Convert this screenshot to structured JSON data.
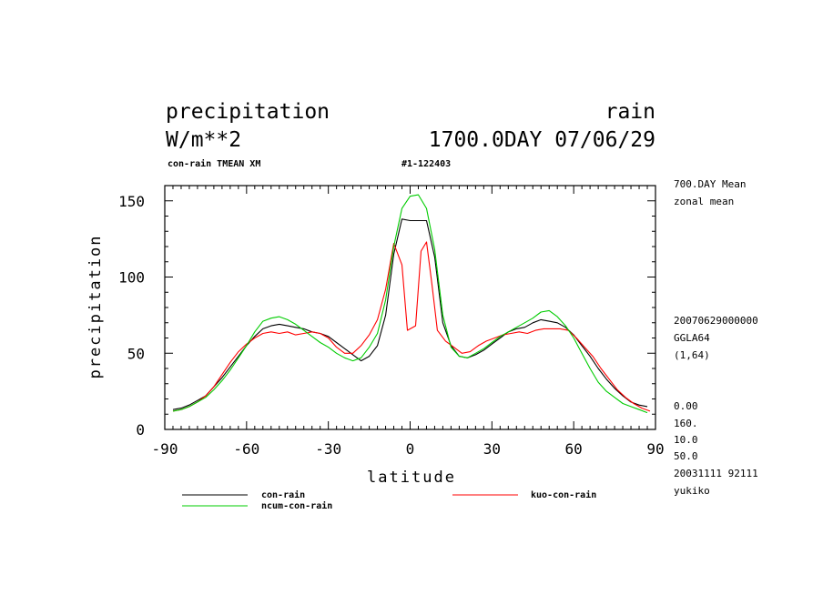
{
  "header": {
    "variable": "precipitation",
    "name": "rain",
    "units": "W/m**2",
    "time": "1700.0DAY 07/06/29",
    "subtitle_left": "con-rain TMEAN XM",
    "subtitle_id": "#1-122403"
  },
  "side_info": {
    "top": [
      "700.DAY Mean",
      "zonal mean"
    ],
    "middle": [
      "20070629000000",
      "GGLA64",
      "(1,64)"
    ],
    "bottom": [
      "0.00",
      "160.",
      "10.0",
      "50.0",
      "20031111  92111",
      "yukiko"
    ]
  },
  "chart_data": {
    "type": "line",
    "xlabel": "latitude",
    "ylabel": "precipitation",
    "xlim": [
      -90,
      90
    ],
    "ylim": [
      0,
      160
    ],
    "xticks": [
      -90,
      -60,
      -30,
      0,
      30,
      60,
      90
    ],
    "yticks": [
      0,
      50,
      100,
      150
    ],
    "x_tick_labels": [
      "-90",
      "-60",
      "-30",
      "0",
      "30",
      "60",
      "90"
    ],
    "y_tick_labels": [
      "0",
      "50",
      "100",
      "150"
    ],
    "grid": false,
    "legend_position": "bottom",
    "series": [
      {
        "name": "con-rain",
        "color": "#000000",
        "x": [
          -87,
          -84,
          -81,
          -78,
          -75,
          -72,
          -69,
          -66,
          -63,
          -60,
          -57,
          -54,
          -51,
          -48,
          -45,
          -42,
          -39,
          -36,
          -33,
          -30,
          -27,
          -24,
          -21,
          -18,
          -15,
          -12,
          -9,
          -6,
          -3,
          0,
          3,
          6,
          9,
          12,
          15,
          18,
          21,
          24,
          27,
          30,
          33,
          36,
          39,
          42,
          45,
          48,
          51,
          54,
          57,
          60,
          63,
          66,
          69,
          72,
          75,
          78,
          81,
          84,
          87
        ],
        "y": [
          13,
          14,
          16,
          19,
          22,
          28,
          34,
          41,
          48,
          55,
          61,
          66,
          68,
          69,
          68,
          67,
          66,
          64,
          63,
          61,
          57,
          53,
          49,
          45,
          48,
          55,
          75,
          115,
          138,
          137,
          137,
          137,
          113,
          70,
          55,
          48,
          47,
          49,
          52,
          56,
          60,
          64,
          66,
          67,
          70,
          72,
          71,
          70,
          67,
          62,
          55,
          48,
          40,
          33,
          27,
          22,
          18,
          16,
          15
        ]
      },
      {
        "name": "kuo-con-rain",
        "color": "#ff0000",
        "x": [
          -87,
          -84,
          -81,
          -78,
          -75,
          -72,
          -69,
          -66,
          -63,
          -60,
          -57,
          -54,
          -51,
          -48,
          -45,
          -42,
          -39,
          -36,
          -33,
          -30,
          -27,
          -24,
          -21,
          -18,
          -15,
          -12,
          -9,
          -6,
          -3,
          -1,
          2,
          4,
          6,
          8,
          10,
          13,
          16,
          19,
          22,
          25,
          28,
          31,
          34,
          37,
          40,
          43,
          46,
          49,
          52,
          55,
          58,
          61,
          64,
          67,
          70,
          73,
          76,
          79,
          82,
          85,
          88
        ],
        "y": [
          12,
          13,
          15,
          18,
          22,
          28,
          36,
          44,
          51,
          56,
          60,
          63,
          64,
          63,
          64,
          62,
          63,
          64,
          63,
          60,
          54,
          50,
          50,
          55,
          62,
          72,
          92,
          122,
          108,
          65,
          68,
          117,
          123,
          95,
          65,
          58,
          54,
          50,
          51,
          55,
          58,
          60,
          62,
          63,
          64,
          63,
          65,
          66,
          66,
          66,
          65,
          60,
          54,
          48,
          40,
          33,
          26,
          21,
          17,
          14,
          12
        ]
      },
      {
        "name": "ncum-con-rain",
        "color": "#00cc00",
        "x": [
          -87,
          -84,
          -81,
          -78,
          -75,
          -72,
          -69,
          -66,
          -63,
          -60,
          -57,
          -54,
          -51,
          -48,
          -45,
          -42,
          -39,
          -36,
          -33,
          -30,
          -27,
          -24,
          -21,
          -18,
          -15,
          -12,
          -9,
          -6,
          -3,
          0,
          3,
          6,
          9,
          12,
          15,
          18,
          21,
          24,
          27,
          30,
          33,
          36,
          39,
          42,
          45,
          48,
          51,
          54,
          57,
          60,
          63,
          66,
          69,
          72,
          75,
          78,
          81,
          84,
          87
        ],
        "y": [
          12,
          13,
          15,
          18,
          21,
          26,
          32,
          39,
          47,
          55,
          64,
          71,
          73,
          74,
          72,
          69,
          65,
          61,
          57,
          54,
          50,
          47,
          45,
          47,
          54,
          63,
          85,
          120,
          145,
          153,
          154,
          145,
          118,
          75,
          54,
          48,
          47,
          50,
          53,
          57,
          61,
          64,
          67,
          70,
          73,
          77,
          78,
          74,
          68,
          60,
          50,
          40,
          31,
          25,
          21,
          17,
          15,
          13,
          11
        ]
      }
    ]
  }
}
